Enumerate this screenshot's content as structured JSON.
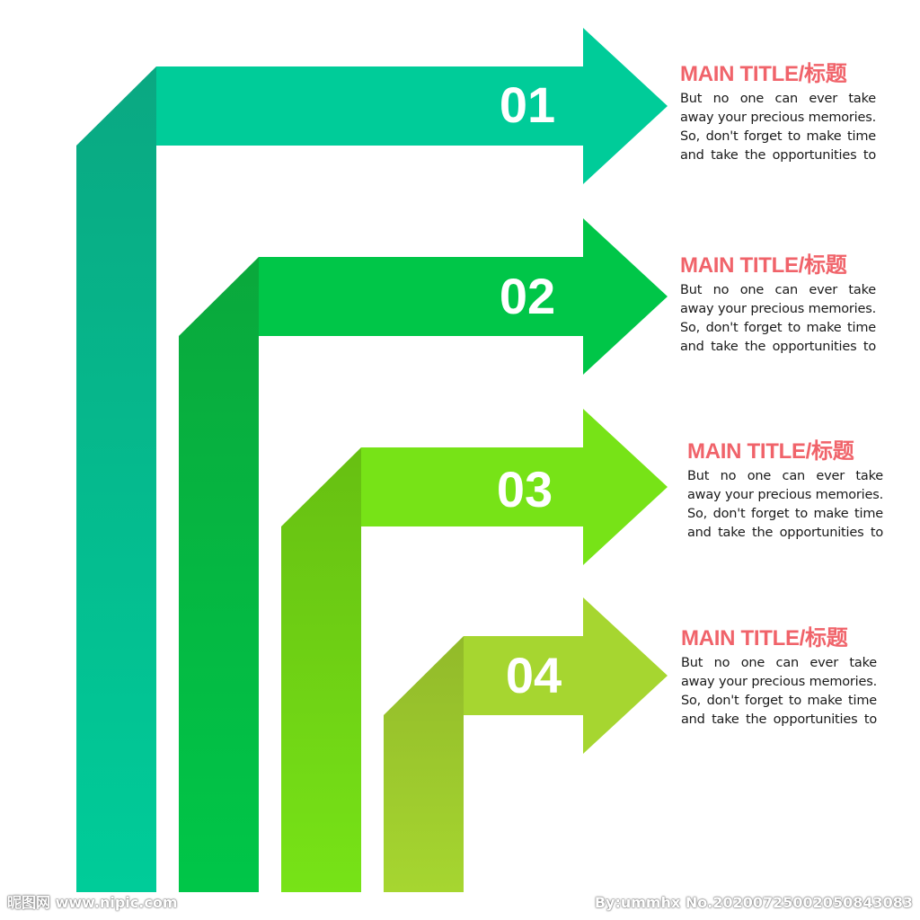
{
  "colors": {
    "title": "#f0636a",
    "number": "#ffffff",
    "body_text": "#1a1a1a"
  },
  "steps": [
    {
      "number": "01",
      "title": "MAIN TITLE/标题",
      "body": "But no one can ever take away your precious memories. So, don't forget to make time and take the opportunities to",
      "color": "#00cc99",
      "fold_color": "#0aa882",
      "icon": "bent-arrow-icon"
    },
    {
      "number": "02",
      "title": "MAIN TITLE/标题",
      "body": "But no one can ever take away your precious memories. So, don't forget to make time and take the opportunities to",
      "color": "#00c648",
      "fold_color": "#0aa83c",
      "icon": "bent-arrow-icon"
    },
    {
      "number": "03",
      "title": "MAIN TITLE/标题",
      "body": "But no one can ever take away your precious memories. So, don't forget to make time and take the opportunities to",
      "color": "#77e317",
      "fold_color": "#67bf12",
      "icon": "bent-arrow-icon"
    },
    {
      "number": "04",
      "title": "MAIN TITLE/标题",
      "body": "But no one can ever take away your precious memories. So, don't forget to make time and take the opportunities to",
      "color": "#a6d630",
      "fold_color": "#92ba2a",
      "icon": "bent-arrow-icon"
    }
  ],
  "footer": {
    "left": "昵图网 www.nipic.com",
    "right": "By:ummhx No.20200725002050843083"
  }
}
